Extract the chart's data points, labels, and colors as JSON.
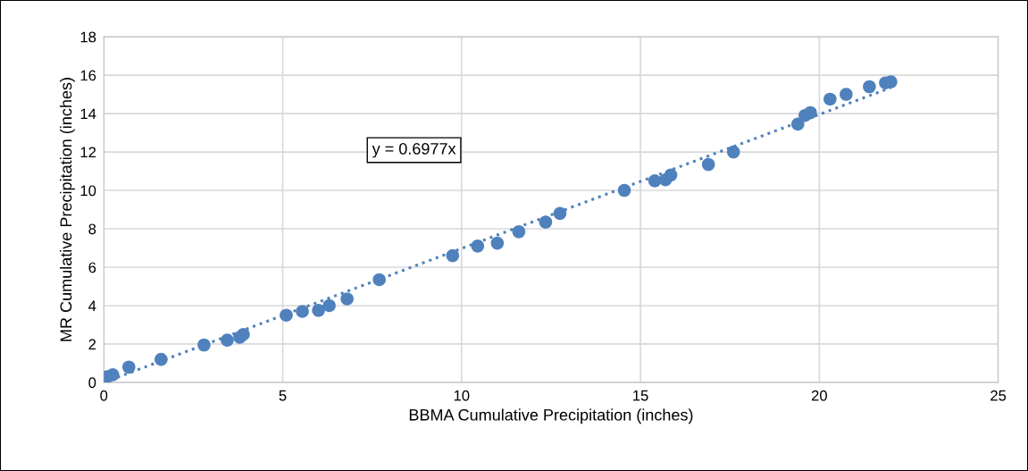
{
  "chart_data": {
    "type": "scatter",
    "xlabel": "BBMA Cumulative Precipitation (inches)",
    "ylabel": "MR Cumulative Precipitation (inches)",
    "xlim": [
      0,
      25
    ],
    "xticks": [
      0,
      5,
      10,
      15,
      20,
      25
    ],
    "ylim": [
      0,
      18
    ],
    "yticks": [
      0,
      2,
      4,
      6,
      8,
      10,
      12,
      14,
      16,
      18
    ],
    "grid": true,
    "legend": false,
    "series": [
      {
        "marker": "circle",
        "color": "#4f81bd",
        "x": [
          0.1,
          0.25,
          0.7,
          1.6,
          2.8,
          3.45,
          3.8,
          3.9,
          5.1,
          5.55,
          6.0,
          6.3,
          6.8,
          7.7,
          9.75,
          10.45,
          11.0,
          11.6,
          12.35,
          12.75,
          14.55,
          15.4,
          15.7,
          15.85,
          16.9,
          17.6,
          19.4,
          19.6,
          19.75,
          20.3,
          20.75,
          21.4,
          21.85,
          22.0
        ],
        "values": [
          0.3,
          0.4,
          0.8,
          1.2,
          1.95,
          2.2,
          2.35,
          2.5,
          3.5,
          3.7,
          3.75,
          4.0,
          4.35,
          5.35,
          6.6,
          7.1,
          7.25,
          7.85,
          8.35,
          8.8,
          10.0,
          10.5,
          10.55,
          10.8,
          11.35,
          12.0,
          13.45,
          13.9,
          14.05,
          14.75,
          15.0,
          15.4,
          15.6,
          15.65
        ]
      },
      {
        "type": "line",
        "marker": "none",
        "color": "#4f81bd",
        "line_style": "dotted",
        "x": [
          0,
          22
        ],
        "values": [
          0,
          15.35
        ]
      }
    ],
    "annotations": [
      "y = 0.6977x"
    ]
  }
}
